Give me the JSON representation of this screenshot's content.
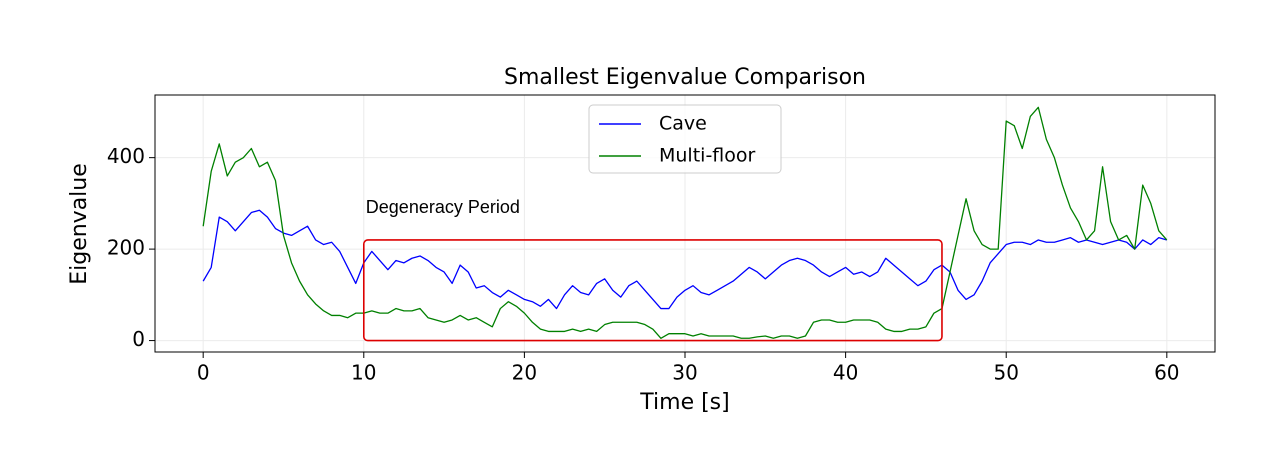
{
  "chart_data": {
    "type": "line",
    "title": "Smallest Eigenvalue Comparison",
    "x_label": "Time [s]",
    "y_label": "Eigenvalue",
    "x": [
      0,
      0.5,
      1,
      1.5,
      2,
      2.5,
      3,
      3.5,
      4,
      4.5,
      5,
      5.5,
      6,
      6.5,
      7,
      7.5,
      8,
      8.5,
      9,
      9.5,
      10,
      10.5,
      11,
      11.5,
      12,
      12.5,
      13,
      13.5,
      14,
      14.5,
      15,
      15.5,
      16,
      16.5,
      17,
      17.5,
      18,
      18.5,
      19,
      19.5,
      20,
      20.5,
      21,
      21.5,
      22,
      22.5,
      23,
      23.5,
      24,
      24.5,
      25,
      25.5,
      26,
      26.5,
      27,
      27.5,
      28,
      28.5,
      29,
      29.5,
      30,
      30.5,
      31,
      31.5,
      32,
      32.5,
      33,
      33.5,
      34,
      34.5,
      35,
      35.5,
      36,
      36.5,
      37,
      37.5,
      38,
      38.5,
      39,
      39.5,
      40,
      40.5,
      41,
      41.5,
      42,
      42.5,
      43,
      43.5,
      44,
      44.5,
      45,
      45.5,
      46,
      46.5,
      47,
      47.5,
      48,
      48.5,
      49,
      49.5,
      50,
      50.5,
      51,
      51.5,
      52,
      52.5,
      53,
      53.5,
      54,
      54.5,
      55,
      55.5,
      56,
      56.5,
      57,
      57.5,
      58,
      58.5,
      59,
      59.5,
      60
    ],
    "series": [
      {
        "name": "Cave",
        "color": "#0000ff",
        "values": [
          130,
          160,
          270,
          260,
          240,
          260,
          280,
          285,
          270,
          245,
          235,
          230,
          240,
          250,
          220,
          210,
          215,
          195,
          160,
          125,
          170,
          195,
          175,
          155,
          175,
          170,
          180,
          185,
          175,
          160,
          150,
          125,
          165,
          150,
          115,
          120,
          105,
          95,
          110,
          100,
          90,
          85,
          75,
          90,
          70,
          100,
          120,
          105,
          100,
          125,
          135,
          110,
          95,
          120,
          130,
          110,
          90,
          70,
          70,
          95,
          110,
          120,
          105,
          100,
          110,
          120,
          130,
          145,
          160,
          150,
          135,
          150,
          165,
          175,
          180,
          175,
          165,
          150,
          140,
          150,
          160,
          145,
          150,
          140,
          150,
          180,
          165,
          150,
          135,
          120,
          130,
          155,
          165,
          150,
          110,
          90,
          100,
          130,
          170,
          190,
          210,
          215,
          215,
          210,
          220,
          215,
          215,
          220,
          225,
          215,
          220,
          215,
          210,
          215,
          220,
          215,
          200,
          220,
          210,
          225,
          220
        ]
      },
      {
        "name": "Multi-floor",
        "color": "#008000",
        "values": [
          250,
          370,
          430,
          360,
          390,
          400,
          420,
          380,
          390,
          350,
          230,
          170,
          130,
          100,
          80,
          65,
          55,
          55,
          50,
          60,
          60,
          65,
          60,
          60,
          70,
          65,
          65,
          70,
          50,
          45,
          40,
          45,
          55,
          45,
          50,
          40,
          30,
          70,
          85,
          75,
          60,
          40,
          25,
          20,
          20,
          20,
          25,
          20,
          25,
          20,
          35,
          40,
          40,
          40,
          40,
          35,
          25,
          5,
          15,
          15,
          15,
          10,
          15,
          10,
          10,
          10,
          10,
          5,
          5,
          8,
          10,
          5,
          10,
          10,
          5,
          10,
          40,
          45,
          45,
          40,
          40,
          45,
          45,
          45,
          40,
          25,
          20,
          20,
          25,
          25,
          30,
          60,
          70,
          150,
          230,
          310,
          240,
          210,
          200,
          200,
          480,
          470,
          420,
          490,
          510,
          440,
          400,
          340,
          290,
          260,
          220,
          240,
          380,
          260,
          220,
          230,
          200,
          340,
          300,
          240,
          220
        ]
      }
    ],
    "xlim": [
      -3,
      63
    ],
    "ylim": [
      -25,
      537
    ],
    "xticks": [
      0,
      10,
      20,
      30,
      40,
      50,
      60
    ],
    "yticks": [
      0,
      200,
      400
    ],
    "grid": true,
    "legend": "upper center",
    "annotation": {
      "text": "Degeneracy Period",
      "x": 10,
      "y": 289,
      "color": "#dd0000"
    },
    "highlight": {
      "x": [
        10,
        46
      ],
      "y": [
        0,
        220
      ],
      "color": "#dd0000"
    }
  }
}
